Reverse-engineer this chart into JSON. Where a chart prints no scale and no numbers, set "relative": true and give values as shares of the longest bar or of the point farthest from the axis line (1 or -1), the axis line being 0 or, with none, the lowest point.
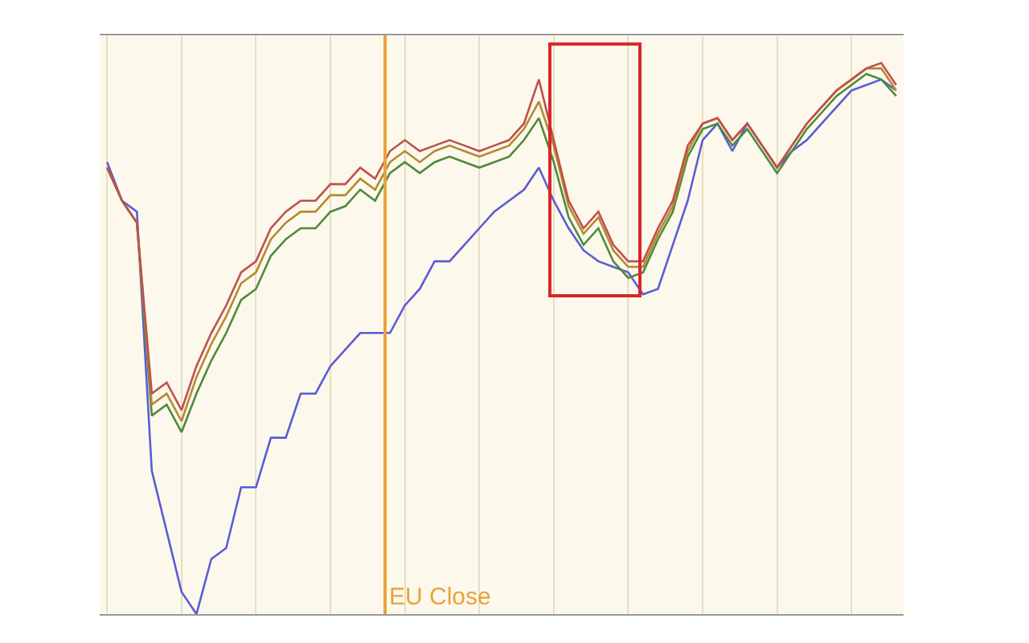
{
  "chart_data": {
    "type": "line",
    "relative": true,
    "grid": "x",
    "categories": [
      null,
      null,
      null,
      null,
      null,
      null,
      null,
      null,
      null,
      null,
      null,
      null,
      null,
      null,
      null,
      null,
      null,
      null,
      null,
      null,
      null,
      null,
      null,
      null,
      null,
      null,
      null,
      null,
      null,
      null,
      null,
      null,
      null,
      null,
      null,
      null,
      null,
      null,
      null,
      null,
      null,
      null,
      null,
      null,
      null,
      null,
      null,
      null,
      null,
      null,
      null,
      null,
      null,
      null
    ],
    "series": [
      {
        "color": "#5b5bd6",
        "values": [
          0.82,
          0.75,
          0.73,
          0.26,
          0.15,
          0.04,
          0,
          0.1,
          0.12,
          0.23,
          0.23,
          0.32,
          0.32,
          0.4,
          0.4,
          0.45,
          0.48,
          0.51,
          0.51,
          0.51,
          0.56,
          0.59,
          0.64,
          0.64,
          0.67,
          0.7,
          0.73,
          0.75,
          0.77,
          0.81,
          0.75,
          0.7,
          0.66,
          0.64,
          0.63,
          0.62,
          0.58,
          0.59,
          0.67,
          0.75,
          0.86,
          0.89,
          0.84,
          0.89,
          0.85,
          0.81,
          0.84,
          0.86,
          0.89,
          0.92,
          0.95,
          0.96,
          0.97,
          0.95
        ]
      },
      {
        "color": "#4f8a3c",
        "values": [
          0.81,
          0.75,
          0.71,
          0.36,
          0.38,
          0.33,
          0.4,
          0.46,
          0.51,
          0.57,
          0.59,
          0.65,
          0.68,
          0.7,
          0.7,
          0.73,
          0.74,
          0.77,
          0.75,
          0.8,
          0.82,
          0.8,
          0.82,
          0.83,
          0.82,
          0.81,
          0.82,
          0.83,
          0.86,
          0.9,
          0.82,
          0.72,
          0.67,
          0.7,
          0.64,
          0.61,
          0.62,
          0.68,
          0.73,
          0.83,
          0.88,
          0.89,
          0.85,
          0.88,
          0.84,
          0.8,
          0.84,
          0.88,
          0.91,
          0.94,
          0.96,
          0.98,
          0.97,
          0.94
        ]
      },
      {
        "color": "#b5892f",
        "values": [
          0.81,
          0.75,
          0.71,
          0.38,
          0.4,
          0.35,
          0.43,
          0.49,
          0.54,
          0.6,
          0.62,
          0.68,
          0.71,
          0.73,
          0.73,
          0.76,
          0.76,
          0.79,
          0.77,
          0.82,
          0.84,
          0.82,
          0.84,
          0.85,
          0.84,
          0.83,
          0.84,
          0.85,
          0.88,
          0.93,
          0.85,
          0.74,
          0.69,
          0.72,
          0.66,
          0.63,
          0.63,
          0.69,
          0.74,
          0.84,
          0.89,
          0.9,
          0.86,
          0.89,
          0.85,
          0.81,
          0.85,
          0.89,
          0.92,
          0.95,
          0.97,
          0.99,
          0.99,
          0.95
        ]
      },
      {
        "color": "#c0504d",
        "values": [
          0.81,
          0.75,
          0.71,
          0.4,
          0.42,
          0.37,
          0.45,
          0.51,
          0.56,
          0.62,
          0.64,
          0.7,
          0.73,
          0.75,
          0.75,
          0.78,
          0.78,
          0.81,
          0.79,
          0.84,
          0.86,
          0.84,
          0.85,
          0.86,
          0.85,
          0.84,
          0.85,
          0.86,
          0.89,
          0.97,
          0.86,
          0.75,
          0.7,
          0.73,
          0.67,
          0.64,
          0.64,
          0.7,
          0.75,
          0.85,
          0.89,
          0.9,
          0.86,
          0.89,
          0.85,
          0.81,
          0.85,
          0.89,
          0.92,
          0.95,
          0.97,
          0.99,
          1.0,
          0.96
        ]
      }
    ],
    "annotations": [
      "EU Close"
    ]
  }
}
